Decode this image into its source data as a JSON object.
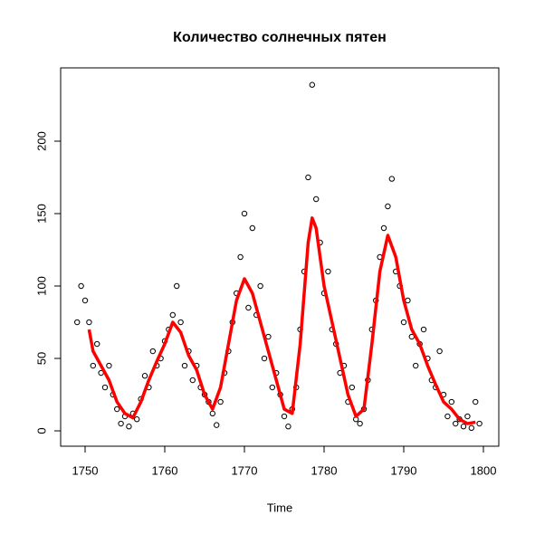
{
  "chart_data": {
    "type": "scatter",
    "title": "Количество солнечных пятен",
    "xlabel": "Time",
    "point_color": "#000000",
    "x": [
      1749,
      1749.5,
      1750,
      1750.5,
      1751,
      1751.5,
      1752,
      1752.5,
      1753,
      1753.5,
      1754,
      1754.5,
      1755,
      1755.5,
      1756,
      1756.5,
      1757,
      1757.5,
      1758,
      1758.5,
      1759,
      1759.5,
      1760,
      1760.5,
      1761,
      1761.5,
      1762,
      1762.5,
      1763,
      1763.5,
      1764,
      1764.5,
      1765,
      1765.5,
      1766,
      1766.5,
      1767,
      1767.5,
      1768,
      1768.5,
      1769,
      1769.5,
      1770,
      1770.5,
      1771,
      1771.5,
      1772,
      1772.5,
      1773,
      1773.5,
      1774,
      1774.5,
      1775,
      1775.5,
      1776,
      1776.5,
      1777,
      1777.5,
      1778,
      1778.5,
      1779,
      1779.5,
      1780,
      1780.5,
      1781,
      1781.5,
      1782,
      1782.5,
      1783,
      1783.5,
      1784,
      1784.5,
      1785,
      1785.5,
      1786,
      1786.5,
      1787,
      1787.5,
      1788,
      1788.5,
      1789,
      1789.5,
      1790,
      1790.5,
      1791,
      1791.5,
      1792,
      1792.5,
      1793,
      1793.5,
      1794,
      1794.5,
      1795,
      1795.5,
      1796,
      1796.5,
      1797,
      1797.5,
      1798,
      1798.5,
      1799,
      1799.5
    ],
    "values": [
      75,
      100,
      90,
      75,
      45,
      60,
      40,
      30,
      45,
      25,
      15,
      5,
      10,
      3,
      12,
      8,
      22,
      38,
      30,
      55,
      45,
      50,
      62,
      70,
      80,
      100,
      75,
      45,
      55,
      35,
      45,
      30,
      25,
      20,
      12,
      4,
      20,
      40,
      55,
      75,
      95,
      120,
      150,
      85,
      140,
      80,
      100,
      50,
      65,
      30,
      40,
      25,
      10,
      3,
      15,
      30,
      70,
      110,
      175,
      238.9,
      160,
      130,
      95,
      110,
      70,
      60,
      40,
      45,
      20,
      30,
      8,
      5,
      15,
      35,
      70,
      90,
      120,
      140,
      155,
      174,
      110,
      100,
      75,
      90,
      65,
      45,
      60,
      70,
      50,
      35,
      30,
      55,
      25,
      10,
      20,
      5,
      8,
      3,
      10,
      2,
      20,
      5
    ],
    "line": {
      "color": "#ff0000",
      "x": [
        1750.5,
        1751,
        1752,
        1753,
        1754,
        1755,
        1756,
        1757,
        1758,
        1759,
        1760,
        1761,
        1762,
        1763,
        1764,
        1765,
        1766,
        1767,
        1768,
        1769,
        1770,
        1771,
        1772,
        1773,
        1774,
        1775,
        1776,
        1777,
        1778,
        1778.5,
        1779,
        1780,
        1781,
        1782,
        1783,
        1784,
        1785,
        1786,
        1787,
        1788,
        1789,
        1790,
        1791,
        1792,
        1793,
        1794,
        1795,
        1796,
        1797,
        1798,
        1799
      ],
      "values": [
        70,
        55,
        45,
        35,
        20,
        12,
        9,
        20,
        35,
        48,
        60,
        75,
        68,
        52,
        42,
        25,
        15,
        30,
        60,
        90,
        105,
        95,
        75,
        55,
        35,
        15,
        12,
        60,
        130,
        147,
        140,
        100,
        75,
        50,
        25,
        10,
        15,
        60,
        110,
        135,
        120,
        90,
        70,
        60,
        45,
        32,
        20,
        15,
        8,
        5,
        6
      ]
    },
    "xlim": [
      1746.93,
      1801.93
    ],
    "ylim": [
      -10.6,
      250.6
    ],
    "xticks": [
      1750,
      1760,
      1770,
      1780,
      1790,
      1800
    ],
    "yticks": [
      0,
      50,
      100,
      150,
      200
    ]
  }
}
